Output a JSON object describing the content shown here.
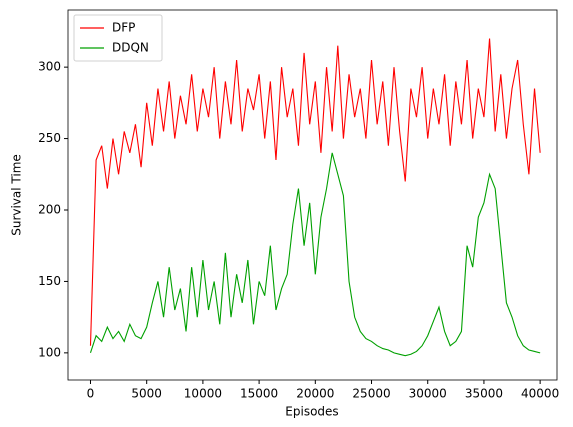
{
  "chart_data": {
    "type": "line",
    "xlabel": "Episodes",
    "ylabel": "Survival Time",
    "x": [
      0,
      500,
      1000,
      1500,
      2000,
      2500,
      3000,
      3500,
      4000,
      4500,
      5000,
      5500,
      6000,
      6500,
      7000,
      7500,
      8000,
      8500,
      9000,
      9500,
      10000,
      10500,
      11000,
      11500,
      12000,
      12500,
      13000,
      13500,
      14000,
      14500,
      15000,
      15500,
      16000,
      16500,
      17000,
      17500,
      18000,
      18500,
      19000,
      19500,
      20000,
      20500,
      21000,
      21500,
      22000,
      22500,
      23000,
      23500,
      24000,
      24500,
      25000,
      25500,
      26000,
      26500,
      27000,
      27500,
      28000,
      28500,
      29000,
      29500,
      30000,
      30500,
      31000,
      31500,
      32000,
      32500,
      33000,
      33500,
      34000,
      34500,
      35000,
      35500,
      36000,
      36500,
      37000,
      37500,
      38000,
      38500,
      39000,
      39500,
      40000
    ],
    "series": [
      {
        "name": "DFP",
        "color": "#ff0000",
        "values": [
          105,
          235,
          245,
          215,
          250,
          225,
          255,
          240,
          260,
          230,
          275,
          245,
          285,
          255,
          290,
          250,
          280,
          260,
          295,
          255,
          285,
          265,
          300,
          250,
          290,
          260,
          305,
          255,
          285,
          270,
          295,
          250,
          290,
          235,
          300,
          265,
          285,
          245,
          310,
          260,
          290,
          240,
          300,
          255,
          315,
          250,
          295,
          265,
          285,
          250,
          305,
          260,
          290,
          245,
          300,
          255,
          220,
          285,
          265,
          300,
          250,
          285,
          260,
          295,
          245,
          290,
          260,
          305,
          250,
          285,
          265,
          320,
          255,
          295,
          250,
          285,
          305,
          260,
          225,
          285,
          240
        ]
      },
      {
        "name": "DDQN",
        "color": "#00a000",
        "values": [
          100,
          112,
          108,
          118,
          110,
          115,
          108,
          120,
          112,
          110,
          118,
          135,
          150,
          125,
          160,
          130,
          145,
          115,
          160,
          125,
          165,
          130,
          150,
          120,
          170,
          125,
          155,
          135,
          165,
          120,
          150,
          140,
          175,
          130,
          145,
          155,
          190,
          215,
          175,
          205,
          155,
          195,
          215,
          240,
          225,
          210,
          150,
          125,
          115,
          110,
          108,
          105,
          103,
          102,
          100,
          99,
          98,
          99,
          101,
          105,
          112,
          122,
          132,
          115,
          105,
          108,
          115,
          175,
          160,
          195,
          205,
          225,
          215,
          175,
          135,
          125,
          112,
          105,
          102,
          101,
          100
        ]
      }
    ],
    "xlim": [
      -2000,
      41500
    ],
    "xticks": [
      0,
      5000,
      10000,
      15000,
      20000,
      25000,
      30000,
      35000,
      40000
    ],
    "ylim": [
      81,
      340
    ],
    "yticks": [
      100,
      150,
      200,
      250,
      300
    ],
    "grid": false,
    "legend": "upper left"
  }
}
